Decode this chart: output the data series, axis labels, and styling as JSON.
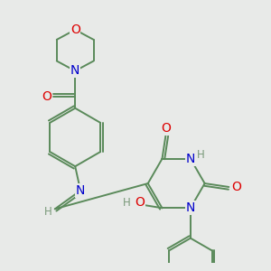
{
  "bg_color": "#e8eae8",
  "bond_color": "#5a8a5a",
  "bond_width": 1.4,
  "atom_colors": {
    "O": "#dd0000",
    "N": "#0000cc",
    "H": "#7a9a7a",
    "C": "#5a8a5a"
  },
  "dbo": 0.07,
  "font_size": 8.5
}
